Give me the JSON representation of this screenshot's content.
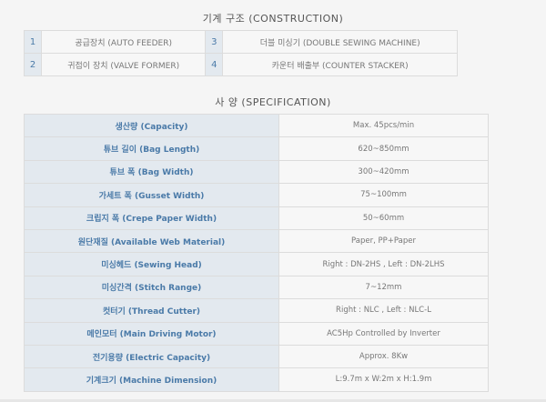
{
  "construction": {
    "title": "기계 구조 (CONSTRUCTION)",
    "items": [
      {
        "num": "1",
        "label": "공급장치 (AUTO FEEDER)"
      },
      {
        "num": "2",
        "label": "귀접이 장치 (VALVE FORMER)"
      },
      {
        "num": "3",
        "label": "더블 미싱기 (DOUBLE SEWING MACHINE)"
      },
      {
        "num": "4",
        "label": "카운터 배출부 (COUNTER STACKER)"
      }
    ]
  },
  "specification": {
    "title": "사 양 (SPECIFICATION)",
    "rows": [
      {
        "key": "생산량 (Capacity)",
        "value": "Max. 45pcs/min"
      },
      {
        "key": "튜브 길이 (Bag Length)",
        "value": "620~850mm"
      },
      {
        "key": "튜브 폭 (Bag Width)",
        "value": "300~420mm"
      },
      {
        "key": "가세트 폭 (Gusset Width)",
        "value": "75~100mm"
      },
      {
        "key": "크립지 폭 (Crepe Paper Width)",
        "value": "50~60mm"
      },
      {
        "key": "원단재질 (Available Web Material)",
        "value": "Paper, PP+Paper"
      },
      {
        "key": "미싱헤드 (Sewing Head)",
        "value": "Right : DN-2HS , Left : DN-2LHS"
      },
      {
        "key": "미싱간격 (Stitch Range)",
        "value": "7~12mm"
      },
      {
        "key": "컷터기 (Thread Cutter)",
        "value": "Right : NLC , Left : NLC-L"
      },
      {
        "key": "메인모터 (Main Driving Motor)",
        "value": "AC5Hp Controlled by Inverter"
      },
      {
        "key": "전기용량 (Electric Capacity)",
        "value": "Approx. 8Kw"
      },
      {
        "key": "기계크기 (Machine Dimension)",
        "value": "L:9.7m x W:2m x H:1.9m"
      }
    ]
  }
}
